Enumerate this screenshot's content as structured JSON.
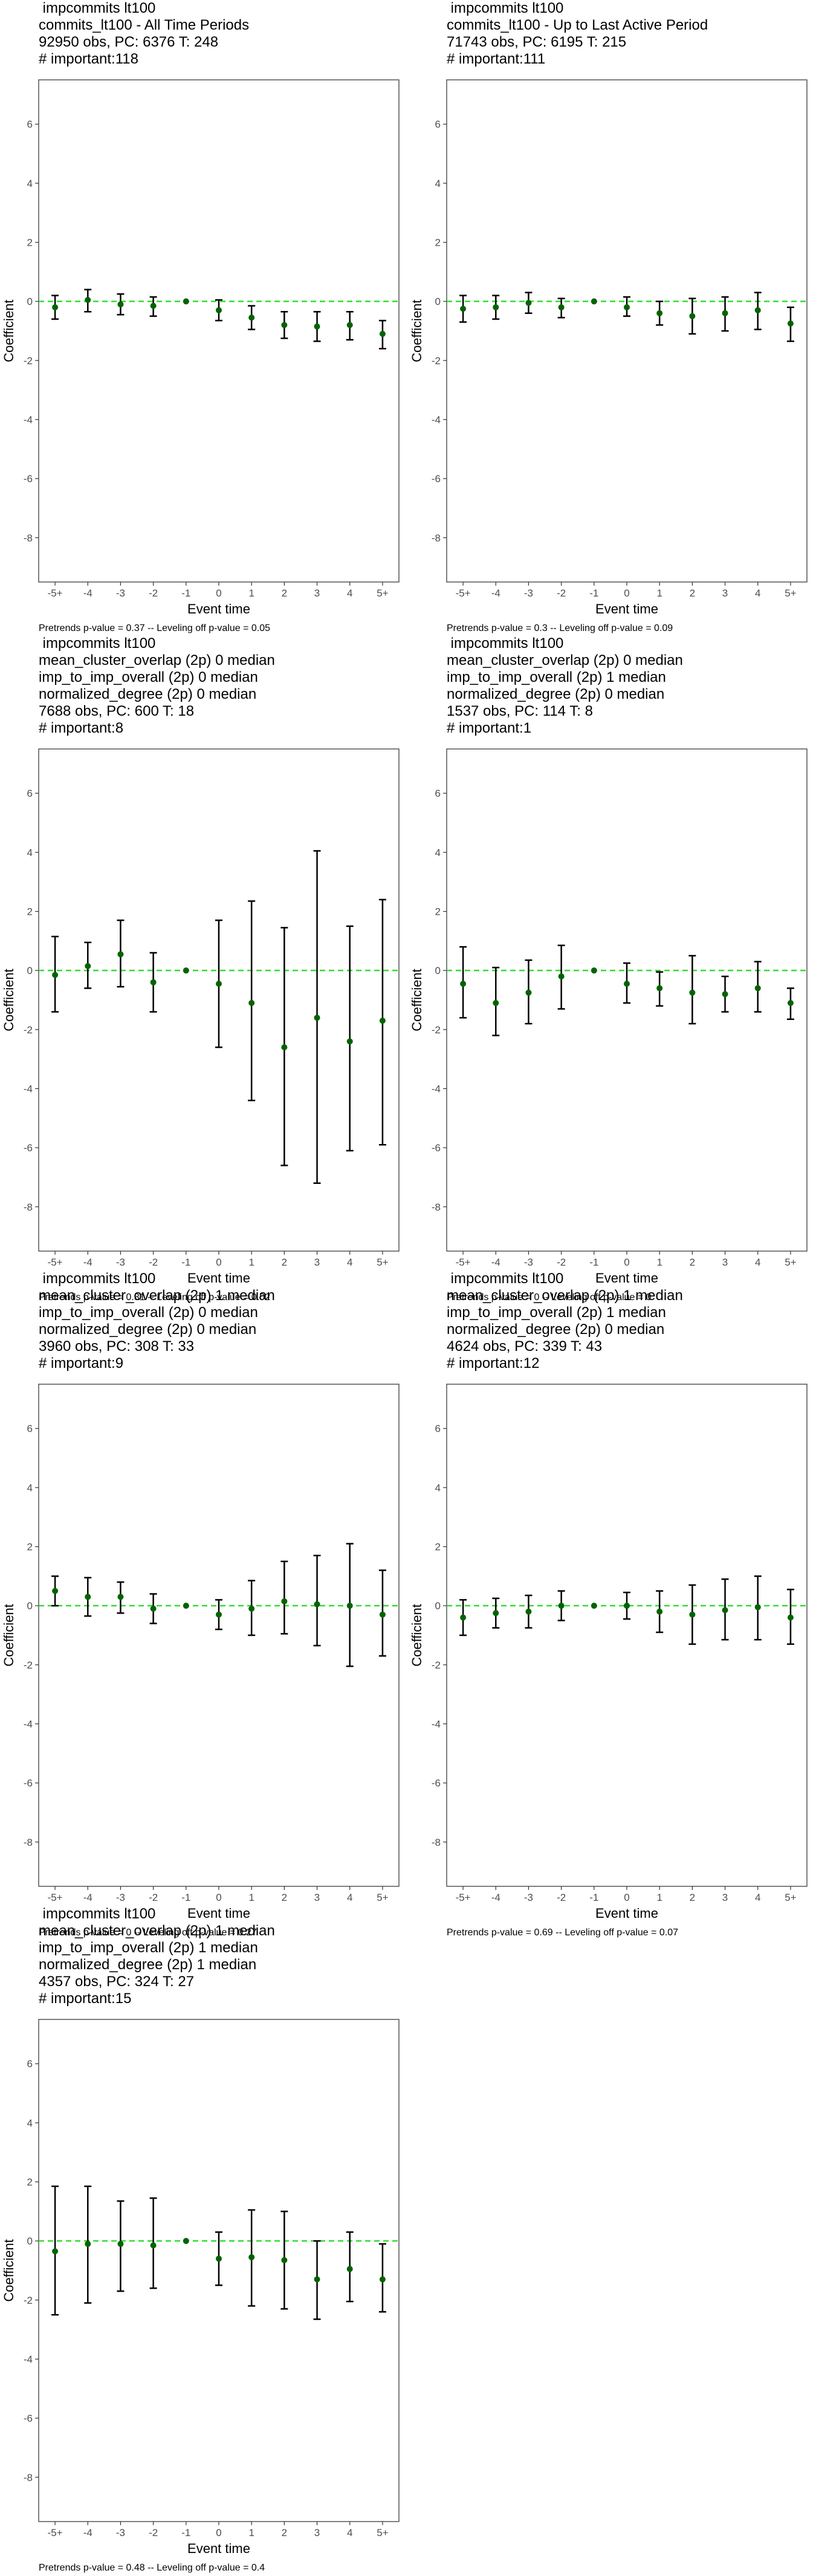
{
  "chart_data": [
    {
      "type": "scatter",
      "title_lines": [
        " impcommits lt100",
        "commits_lt100 - All Time Periods",
        "92950 obs, PC: 6376 T: 248",
        "# important:118"
      ],
      "caption": "Pretrends p-value = 0.37 -- Leveling off p-value = 0.05",
      "categories": [
        "-5+",
        "-4",
        "-3",
        "-2",
        "-1",
        "0",
        "1",
        "2",
        "3",
        "4",
        "5+"
      ],
      "values": [
        -0.2,
        0.05,
        -0.1,
        -0.15,
        0.0,
        -0.3,
        -0.55,
        -0.8,
        -0.85,
        -0.8,
        -1.1
      ],
      "ci_low": [
        -0.6,
        -0.35,
        -0.45,
        -0.5,
        0.0,
        -0.65,
        -0.95,
        -1.25,
        -1.35,
        -1.3,
        -1.6
      ],
      "ci_high": [
        0.2,
        0.4,
        0.25,
        0.15,
        0.0,
        0.05,
        -0.15,
        -0.35,
        -0.35,
        -0.35,
        -0.65
      ],
      "xlabel": "Event time",
      "ylabel": "Coefficient",
      "ylim": [
        -9.5,
        7.5
      ],
      "yticks": [
        -8,
        -6,
        -4,
        -2,
        0,
        2,
        4,
        6
      ],
      "reference_line": 0,
      "grid": false
    },
    {
      "type": "scatter",
      "title_lines": [
        " impcommits lt100",
        "commits_lt100 - Up to Last Active Period",
        "71743 obs, PC: 6195 T: 215",
        "# important:111"
      ],
      "caption": "Pretrends p-value = 0.3 -- Leveling off p-value = 0.09",
      "categories": [
        "-5+",
        "-4",
        "-3",
        "-2",
        "-1",
        "0",
        "1",
        "2",
        "3",
        "4",
        "5+"
      ],
      "values": [
        -0.25,
        -0.2,
        -0.05,
        -0.2,
        0.0,
        -0.2,
        -0.4,
        -0.5,
        -0.4,
        -0.3,
        -0.75
      ],
      "ci_low": [
        -0.7,
        -0.6,
        -0.4,
        -0.55,
        0.0,
        -0.5,
        -0.8,
        -1.1,
        -1.0,
        -0.95,
        -1.35
      ],
      "ci_high": [
        0.2,
        0.2,
        0.3,
        0.1,
        0.0,
        0.15,
        0.0,
        0.1,
        0.15,
        0.3,
        -0.2
      ],
      "xlabel": "Event time",
      "ylabel": "Coefficient",
      "ylim": [
        -9.5,
        7.5
      ],
      "yticks": [
        -8,
        -6,
        -4,
        -2,
        0,
        2,
        4,
        6
      ],
      "reference_line": 0,
      "grid": false
    },
    {
      "type": "scatter",
      "title_lines": [
        " impcommits lt100",
        "mean_cluster_overlap (2p) 0 median",
        "imp_to_imp_overall (2p) 0 median",
        "normalized_degree (2p) 0 median",
        "7688 obs, PC: 600 T: 18",
        "# important:8"
      ],
      "caption": "Pretrends p-value = 0.31 -- Leveling off p-value = 0.02",
      "categories": [
        "-5+",
        "-4",
        "-3",
        "-2",
        "-1",
        "0",
        "1",
        "2",
        "3",
        "4",
        "5+"
      ],
      "values": [
        -0.15,
        0.15,
        0.55,
        -0.4,
        0.0,
        -0.45,
        -1.1,
        -2.6,
        -1.6,
        -2.4,
        -1.7
      ],
      "ci_low": [
        -1.4,
        -0.6,
        -0.55,
        -1.4,
        0.0,
        -2.6,
        -4.4,
        -6.6,
        -7.2,
        -6.1,
        -5.9
      ],
      "ci_high": [
        1.15,
        0.95,
        1.7,
        0.6,
        0.0,
        1.7,
        2.35,
        1.45,
        4.05,
        1.5,
        2.4
      ],
      "xlabel": "Event time",
      "ylabel": "Coefficient",
      "ylim": [
        -9.5,
        7.5
      ],
      "yticks": [
        -8,
        -6,
        -4,
        -2,
        0,
        2,
        4,
        6
      ],
      "reference_line": 0,
      "grid": false
    },
    {
      "type": "scatter",
      "title_lines": [
        " impcommits lt100",
        "mean_cluster_overlap (2p) 0 median",
        "imp_to_imp_overall (2p) 1 median",
        "normalized_degree (2p) 0 median",
        "1537 obs, PC: 114 T: 8",
        "# important:1"
      ],
      "caption": "Pretrends p-value = 0 -- Leveling off p-value = 0",
      "categories": [
        "-5+",
        "-4",
        "-3",
        "-2",
        "-1",
        "0",
        "1",
        "2",
        "3",
        "4",
        "5+"
      ],
      "values": [
        -0.45,
        -1.1,
        -0.75,
        -0.2,
        0.0,
        -0.45,
        -0.6,
        -0.75,
        -0.8,
        -0.6,
        -1.1
      ],
      "ci_low": [
        -1.6,
        -2.2,
        -1.8,
        -1.3,
        0.0,
        -1.1,
        -1.2,
        -1.8,
        -1.4,
        -1.4,
        -1.65
      ],
      "ci_high": [
        0.8,
        0.1,
        0.35,
        0.85,
        0.0,
        0.25,
        -0.05,
        0.5,
        -0.2,
        0.3,
        -0.6
      ],
      "xlabel": "Event time",
      "ylabel": "Coefficient",
      "ylim": [
        -9.5,
        7.5
      ],
      "yticks": [
        -8,
        -6,
        -4,
        -2,
        0,
        2,
        4,
        6
      ],
      "reference_line": 0,
      "grid": false
    },
    {
      "type": "scatter",
      "title_lines": [
        " impcommits lt100",
        "mean_cluster_overlap (2p) 1 median",
        "imp_to_imp_overall (2p) 0 median",
        "normalized_degree (2p) 0 median",
        "3960 obs, PC: 308 T: 33",
        "# important:9"
      ],
      "caption": "Pretrends p-value = 0 -- Leveling off p-value = 0.27",
      "categories": [
        "-5+",
        "-4",
        "-3",
        "-2",
        "-1",
        "0",
        "1",
        "2",
        "3",
        "4",
        "5+"
      ],
      "values": [
        0.5,
        0.3,
        0.3,
        -0.1,
        0.0,
        -0.3,
        -0.1,
        0.15,
        0.05,
        0.0,
        -0.3
      ],
      "ci_low": [
        0.0,
        -0.35,
        -0.25,
        -0.6,
        0.0,
        -0.8,
        -1.0,
        -0.95,
        -1.35,
        -2.05,
        -1.7
      ],
      "ci_high": [
        1.0,
        0.95,
        0.8,
        0.4,
        0.0,
        0.2,
        0.85,
        1.5,
        1.7,
        2.1,
        1.2
      ],
      "xlabel": "Event time",
      "ylabel": "Coefficient",
      "ylim": [
        -9.5,
        7.5
      ],
      "yticks": [
        -8,
        -6,
        -4,
        -2,
        0,
        2,
        4,
        6
      ],
      "reference_line": 0,
      "grid": false
    },
    {
      "type": "scatter",
      "title_lines": [
        " impcommits lt100",
        "mean_cluster_overlap (2p) 1 median",
        "imp_to_imp_overall (2p) 1 median",
        "normalized_degree (2p) 0 median",
        "4624 obs, PC: 339 T: 43",
        "# important:12"
      ],
      "caption": "Pretrends p-value = 0.69 -- Leveling off p-value = 0.07",
      "categories": [
        "-5+",
        "-4",
        "-3",
        "-2",
        "-1",
        "0",
        "1",
        "2",
        "3",
        "4",
        "5+"
      ],
      "values": [
        -0.4,
        -0.25,
        -0.2,
        0.0,
        0.0,
        0.0,
        -0.2,
        -0.3,
        -0.15,
        -0.05,
        -0.4
      ],
      "ci_low": [
        -1.0,
        -0.75,
        -0.75,
        -0.5,
        0.0,
        -0.45,
        -0.9,
        -1.3,
        -1.15,
        -1.15,
        -1.3
      ],
      "ci_high": [
        0.2,
        0.25,
        0.35,
        0.5,
        0.0,
        0.45,
        0.5,
        0.7,
        0.9,
        1.0,
        0.55
      ],
      "xlabel": "Event time",
      "ylabel": "Coefficient",
      "ylim": [
        -9.5,
        7.5
      ],
      "yticks": [
        -8,
        -6,
        -4,
        -2,
        0,
        2,
        4,
        6
      ],
      "reference_line": 0,
      "grid": false
    },
    {
      "type": "scatter",
      "title_lines": [
        " impcommits lt100",
        "mean_cluster_overlap (2p) 1 median",
        "imp_to_imp_overall (2p) 1 median",
        "normalized_degree (2p) 1 median",
        "4357 obs, PC: 324 T: 27",
        "# important:15"
      ],
      "caption": "Pretrends p-value = 0.48 -- Leveling off p-value = 0.4",
      "categories": [
        "-5+",
        "-4",
        "-3",
        "-2",
        "-1",
        "0",
        "1",
        "2",
        "3",
        "4",
        "5+"
      ],
      "values": [
        -0.35,
        -0.1,
        -0.1,
        -0.15,
        0.0,
        -0.6,
        -0.55,
        -0.65,
        -1.3,
        -0.95,
        -1.3
      ],
      "ci_low": [
        -2.5,
        -2.1,
        -1.7,
        -1.6,
        0.0,
        -1.5,
        -2.2,
        -2.3,
        -2.65,
        -2.05,
        -2.4
      ],
      "ci_high": [
        1.85,
        1.85,
        1.35,
        1.45,
        0.0,
        0.3,
        1.05,
        1.0,
        0.0,
        0.3,
        -0.1
      ],
      "xlabel": "Event time",
      "ylabel": "Coefficient",
      "ylim": [
        -9.5,
        7.5
      ],
      "yticks": [
        -8,
        -6,
        -4,
        -2,
        0,
        2,
        4,
        6
      ],
      "reference_line": 0,
      "grid": false
    }
  ],
  "colors": {
    "point": "#006400",
    "errorbar": "#000000",
    "reference_line": "#33dd33",
    "panel_border": "#555555",
    "tick_text": "#4d4d4d"
  }
}
